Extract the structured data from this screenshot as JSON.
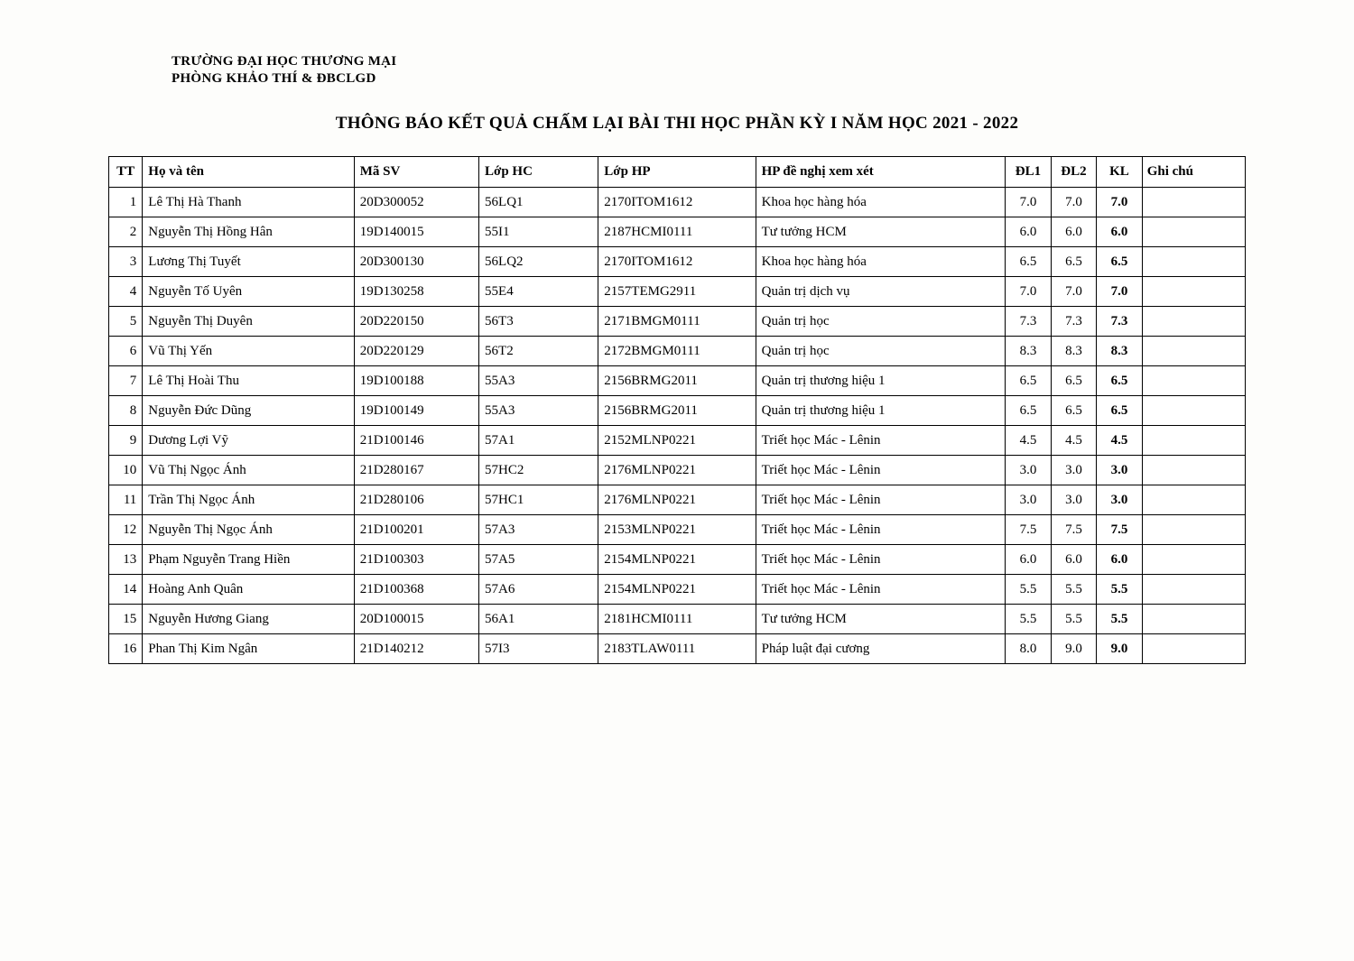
{
  "header": {
    "university": "TRƯỜNG ĐẠI HỌC THƯƠNG MẠI",
    "department": "PHÒNG KHẢO THÍ & ĐBCLGD"
  },
  "title": "THÔNG BÁO KẾT QUẢ CHẤM LẠI BÀI THI HỌC PHẦN KỲ I NĂM HỌC 2021 - 2022",
  "columns": {
    "tt": "TT",
    "hoten": "Họ và tên",
    "masv": "Mã SV",
    "lophc": "Lớp HC",
    "lophp": "Lớp HP",
    "hp": "HP đề nghị xem xét",
    "dl1": "ĐL1",
    "dl2": "ĐL2",
    "kl": "KL",
    "ghichu": "Ghi chú"
  },
  "rows": [
    {
      "tt": "1",
      "hoten": "Lê Thị Hà Thanh",
      "masv": "20D300052",
      "lophc": "56LQ1",
      "lophp": "2170ITOM1612",
      "hp": "Khoa học hàng hóa",
      "dl1": "7.0",
      "dl2": "7.0",
      "kl": "7.0",
      "ghichu": ""
    },
    {
      "tt": "2",
      "hoten": "Nguyễn Thị Hồng Hân",
      "masv": "19D140015",
      "lophc": "55I1",
      "lophp": "2187HCMI0111",
      "hp": "Tư tưởng HCM",
      "dl1": "6.0",
      "dl2": "6.0",
      "kl": "6.0",
      "ghichu": ""
    },
    {
      "tt": "3",
      "hoten": "Lương Thị Tuyết",
      "masv": "20D300130",
      "lophc": "56LQ2",
      "lophp": "2170ITOM1612",
      "hp": "Khoa học hàng hóa",
      "dl1": "6.5",
      "dl2": "6.5",
      "kl": "6.5",
      "ghichu": ""
    },
    {
      "tt": "4",
      "hoten": "Nguyễn Tố Uyên",
      "masv": "19D130258",
      "lophc": "55E4",
      "lophp": "2157TEMG2911",
      "hp": "Quản trị dịch vụ",
      "dl1": "7.0",
      "dl2": "7.0",
      "kl": "7.0",
      "ghichu": ""
    },
    {
      "tt": "5",
      "hoten": "Nguyễn Thị Duyên",
      "masv": "20D220150",
      "lophc": "56T3",
      "lophp": "2171BMGM0111",
      "hp": "Quản trị học",
      "dl1": "7.3",
      "dl2": "7.3",
      "kl": "7.3",
      "ghichu": ""
    },
    {
      "tt": "6",
      "hoten": "Vũ Thị Yến",
      "masv": "20D220129",
      "lophc": "56T2",
      "lophp": "2172BMGM0111",
      "hp": "Quản trị học",
      "dl1": "8.3",
      "dl2": "8.3",
      "kl": "8.3",
      "ghichu": ""
    },
    {
      "tt": "7",
      "hoten": "Lê Thị Hoài Thu",
      "masv": "19D100188",
      "lophc": "55A3",
      "lophp": "2156BRMG2011",
      "hp": "Quản trị thương hiệu 1",
      "dl1": "6.5",
      "dl2": "6.5",
      "kl": "6.5",
      "ghichu": ""
    },
    {
      "tt": "8",
      "hoten": "Nguyễn Đức Dũng",
      "masv": "19D100149",
      "lophc": "55A3",
      "lophp": "2156BRMG2011",
      "hp": "Quản trị thương hiệu 1",
      "dl1": "6.5",
      "dl2": "6.5",
      "kl": "6.5",
      "ghichu": ""
    },
    {
      "tt": "9",
      "hoten": "Dương Lợi Vỹ",
      "masv": "21D100146",
      "lophc": "57A1",
      "lophp": "2152MLNP0221",
      "hp": "Triết học Mác - Lênin",
      "dl1": "4.5",
      "dl2": "4.5",
      "kl": "4.5",
      "ghichu": ""
    },
    {
      "tt": "10",
      "hoten": "Vũ Thị Ngọc Ánh",
      "masv": "21D280167",
      "lophc": "57HC2",
      "lophp": "2176MLNP0221",
      "hp": "Triết học Mác - Lênin",
      "dl1": "3.0",
      "dl2": "3.0",
      "kl": "3.0",
      "ghichu": ""
    },
    {
      "tt": "11",
      "hoten": "Trần Thị Ngọc Ánh",
      "masv": "21D280106",
      "lophc": "57HC1",
      "lophp": "2176MLNP0221",
      "hp": "Triết học Mác - Lênin",
      "dl1": "3.0",
      "dl2": "3.0",
      "kl": "3.0",
      "ghichu": ""
    },
    {
      "tt": "12",
      "hoten": "Nguyễn Thị Ngọc Ánh",
      "masv": "21D100201",
      "lophc": "57A3",
      "lophp": "2153MLNP0221",
      "hp": "Triết học Mác - Lênin",
      "dl1": "7.5",
      "dl2": "7.5",
      "kl": "7.5",
      "ghichu": ""
    },
    {
      "tt": "13",
      "hoten": "Phạm Nguyễn Trang Hiền",
      "masv": "21D100303",
      "lophc": "57A5",
      "lophp": "2154MLNP0221",
      "hp": "Triết học Mác - Lênin",
      "dl1": "6.0",
      "dl2": "6.0",
      "kl": "6.0",
      "ghichu": ""
    },
    {
      "tt": "14",
      "hoten": "Hoàng Anh Quân",
      "masv": "21D100368",
      "lophc": "57A6",
      "lophp": "2154MLNP0221",
      "hp": "Triết học Mác - Lênin",
      "dl1": "5.5",
      "dl2": "5.5",
      "kl": "5.5",
      "ghichu": ""
    },
    {
      "tt": "15",
      "hoten": "Nguyễn Hương Giang",
      "masv": "20D100015",
      "lophc": "56A1",
      "lophp": "2181HCMI0111",
      "hp": "Tư tưởng HCM",
      "dl1": "5.5",
      "dl2": "5.5",
      "kl": "5.5",
      "ghichu": ""
    },
    {
      "tt": "16",
      "hoten": "Phan Thị Kim Ngân",
      "masv": "21D140212",
      "lophc": "57I3",
      "lophp": "2183TLAW0111",
      "hp": "Pháp luật đại cương",
      "dl1": "8.0",
      "dl2": "9.0",
      "kl": "9.0",
      "ghichu": ""
    }
  ]
}
